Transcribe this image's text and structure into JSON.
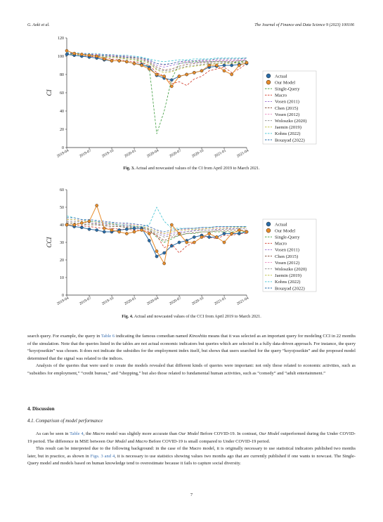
{
  "header": {
    "left": "G. Aoki et al.",
    "right": "The Journal of Finance and Data Science 9 (2023) 100106"
  },
  "legend_labels": [
    "Actual",
    "Our Model",
    "Single-Query",
    "Macro",
    "Vosen (2011)",
    "Chen (2015)",
    "Vosen (2012)",
    "Woloszko (2020)",
    "Jaemin (2019)",
    "Kohns (2022)",
    "Bouayad (2022)"
  ],
  "series_colors": {
    "Actual": "#2a6ca8",
    "Our Model": "#e88c2a",
    "Single-Query": "#3a9a3a",
    "Macro": "#d03a2a",
    "Vosen (2011)": "#9a6fd0",
    "Chen (2015)": "#8c5a4a",
    "Vosen (2012)": "#e88ac0",
    "Woloszko (2020)": "#888888",
    "Jaemin (2019)": "#b8bc3a",
    "Kohns (2022)": "#3ac0d0",
    "Bouayad (2022)": "#2a6ca8"
  },
  "chart_data": [
    {
      "type": "line",
      "ylabel": "CI",
      "xlabel": "",
      "ylim": [
        0,
        120
      ],
      "yticks": [
        "0",
        "20",
        "40",
        "60",
        "80",
        "100",
        "120"
      ],
      "x_tick_labels": [
        "2019-04",
        "2019-07",
        "2019-10",
        "2020-01",
        "2020-04",
        "2020-07",
        "2020-10",
        "2021-01",
        "2021-04"
      ],
      "x_tick_index": [
        0,
        3,
        6,
        9,
        12,
        15,
        18,
        21,
        24
      ],
      "x_range": [
        0,
        24
      ],
      "legend_position": "right",
      "series": [
        {
          "name": "Actual",
          "values": [
            102,
            101,
            100,
            99,
            98,
            96,
            95,
            95,
            94,
            92,
            91,
            88,
            79,
            76,
            74,
            78,
            80,
            82,
            84,
            88,
            89,
            90,
            90,
            91,
            92
          ]
        },
        {
          "name": "Our Model",
          "values": [
            106,
            103,
            102,
            101,
            100,
            97,
            95,
            95,
            94,
            92,
            90,
            86,
            80,
            78,
            67,
            78,
            80,
            82,
            84,
            90,
            90,
            84,
            80,
            90,
            93
          ]
        },
        {
          "name": "Single-Query",
          "values": [
            103,
            102,
            102,
            101,
            100,
            99,
            99,
            98,
            97,
            96,
            94,
            88,
            15,
            40,
            75,
            92,
            93,
            94,
            94,
            94,
            94,
            94,
            93,
            94,
            95
          ]
        },
        {
          "name": "Macro",
          "values": [
            103,
            102,
            101,
            100,
            99,
            98,
            97,
            96,
            95,
            94,
            93,
            90,
            82,
            78,
            70,
            72,
            68,
            75,
            78,
            84,
            86,
            88,
            82,
            86,
            92
          ]
        },
        {
          "name": "Vosen (2011)",
          "values": [
            104,
            103,
            103,
            102,
            102,
            101,
            101,
            100,
            100,
            99,
            98,
            95,
            90,
            88,
            90,
            92,
            93,
            93,
            94,
            94,
            95,
            95,
            95,
            95,
            96
          ]
        },
        {
          "name": "Chen (2015)",
          "values": [
            103,
            103,
            102,
            102,
            101,
            101,
            100,
            99,
            99,
            98,
            97,
            94,
            88,
            85,
            86,
            89,
            91,
            92,
            93,
            93,
            94,
            94,
            94,
            95,
            95
          ]
        },
        {
          "name": "Vosen (2012)",
          "values": [
            104,
            104,
            103,
            103,
            102,
            102,
            101,
            101,
            100,
            99,
            98,
            96,
            92,
            90,
            92,
            94,
            94,
            95,
            95,
            95,
            96,
            96,
            96,
            96,
            97
          ]
        },
        {
          "name": "Woloszko (2020)",
          "values": [
            103,
            102,
            102,
            101,
            100,
            100,
            99,
            98,
            98,
            97,
            96,
            93,
            86,
            84,
            84,
            87,
            89,
            90,
            91,
            92,
            92,
            93,
            93,
            93,
            94
          ]
        },
        {
          "name": "Jaemin (2019)",
          "values": [
            102,
            102,
            101,
            101,
            100,
            99,
            99,
            98,
            97,
            96,
            95,
            92,
            85,
            82,
            83,
            86,
            88,
            89,
            90,
            91,
            92,
            92,
            92,
            93,
            93
          ]
        },
        {
          "name": "Kohns (2022)",
          "values": [
            104,
            104,
            103,
            103,
            103,
            102,
            102,
            101,
            101,
            100,
            99,
            97,
            95,
            94,
            95,
            96,
            96,
            97,
            97,
            97,
            98,
            98,
            98,
            98,
            98
          ]
        },
        {
          "name": "Bouayad (2022)",
          "values": [
            103,
            103,
            102,
            102,
            101,
            101,
            100,
            100,
            99,
            99,
            98,
            96,
            92,
            91,
            92,
            94,
            95,
            95,
            96,
            96,
            97,
            97,
            97,
            97,
            98
          ]
        }
      ]
    },
    {
      "type": "line",
      "ylabel": "CCI",
      "xlabel": "",
      "ylim": [
        0,
        60
      ],
      "yticks": [
        "0",
        "10",
        "20",
        "30",
        "40",
        "50",
        "60"
      ],
      "x_tick_labels": [
        "2019-04",
        "2019-07",
        "2019-10",
        "2020-01",
        "2020-04",
        "2020-07",
        "2020-10",
        "2021-01",
        "2021-04"
      ],
      "x_tick_index": [
        0,
        3,
        6,
        9,
        12,
        15,
        18,
        21,
        24
      ],
      "x_range": [
        0,
        24
      ],
      "legend_position": "right",
      "series": [
        {
          "name": "Actual",
          "values": [
            40,
            39,
            38.5,
            37.5,
            37,
            36,
            36,
            37,
            37.5,
            38,
            38,
            31,
            22,
            24,
            28,
            30,
            31,
            33,
            34,
            33,
            33,
            35,
            35,
            35,
            36
          ]
        },
        {
          "name": "Our Model",
          "values": [
            40,
            40,
            41,
            42,
            51,
            38,
            37,
            36,
            35,
            36,
            37,
            35,
            25,
            18,
            40,
            35,
            30,
            30,
            33,
            35,
            33,
            30,
            35,
            37,
            36
          ]
        },
        {
          "name": "Single-Query",
          "values": [
            41,
            41,
            40.5,
            40,
            40,
            39.5,
            39,
            39,
            38.5,
            38,
            38,
            37,
            33,
            30,
            32,
            34,
            35,
            35,
            36,
            36,
            36,
            36,
            36,
            36,
            36
          ]
        },
        {
          "name": "Macro",
          "values": [
            40,
            40,
            39.5,
            39,
            38.5,
            38,
            38,
            37.5,
            37.5,
            37,
            37,
            36,
            34,
            27,
            29,
            24,
            28,
            30,
            33,
            33,
            32,
            34,
            34,
            35,
            35
          ]
        },
        {
          "name": "Vosen (2011)",
          "values": [
            42,
            42,
            41.5,
            41,
            41,
            40.5,
            40,
            40,
            39.5,
            39,
            39,
            38,
            36,
            34,
            35,
            36,
            36,
            37,
            37,
            37,
            37.5,
            37.5,
            38,
            38,
            38
          ]
        },
        {
          "name": "Chen (2015)",
          "values": [
            41,
            41,
            40.5,
            40,
            40,
            39.5,
            39,
            39,
            38.5,
            38.5,
            38,
            37,
            34,
            31,
            33,
            34,
            35,
            35.5,
            36,
            36,
            36.5,
            36.5,
            37,
            37,
            37
          ]
        },
        {
          "name": "Vosen (2012)",
          "values": [
            43,
            43,
            42.5,
            42,
            42,
            41.5,
            41,
            41,
            40.5,
            40,
            40,
            39,
            37,
            35,
            36,
            37,
            37.5,
            38,
            38,
            38,
            38.5,
            38.5,
            39,
            39,
            39
          ]
        },
        {
          "name": "Woloszko (2020)",
          "values": [
            42,
            42,
            41.5,
            41,
            40.5,
            40,
            40,
            39.5,
            39,
            39,
            38.5,
            37.5,
            35,
            33,
            34,
            35,
            36,
            36.5,
            37,
            37,
            37,
            37.5,
            37.5,
            38,
            38
          ]
        },
        {
          "name": "Jaemin (2019)",
          "values": [
            43,
            43,
            42,
            42,
            41.5,
            41,
            40.5,
            40,
            40,
            39.5,
            39,
            38,
            36,
            35,
            36,
            37,
            37,
            37.5,
            37.5,
            38,
            38,
            38,
            38.5,
            38.5,
            38.5
          ]
        },
        {
          "name": "Kohns (2022)",
          "values": [
            45,
            44,
            43,
            42,
            42,
            41,
            41,
            40,
            40,
            39,
            39,
            40,
            50,
            42,
            38,
            38,
            38,
            38,
            38.5,
            38.5,
            39,
            39,
            39,
            39,
            39
          ]
        },
        {
          "name": "Bouayad (2022)",
          "values": [
            44,
            44,
            43,
            43,
            42.5,
            42,
            41.5,
            41,
            41,
            40.5,
            40,
            39,
            37,
            36,
            37,
            37.5,
            38,
            38,
            38.5,
            38.5,
            39,
            39,
            39,
            39,
            39
          ]
        }
      ]
    }
  ],
  "figures": [
    {
      "label": "Fig. 3.",
      "caption": "Actual and nowcasted values of the CI from April 2019 to March 2021."
    },
    {
      "label": "Fig. 4.",
      "caption": "Actual and nowcasted values of the CCI from April 2019 to March 2021."
    }
  ],
  "para1": {
    "t1": "search query. For example, the query in ",
    "link1": "Table 6",
    "t2": " indicating the famous comedian named ",
    "em1": "Kinoshita",
    "t3": " means that it was selected as an important query for modeling CCI in 22 months of the simulation. Note that the queries listed in the tables are not actual economic indicators but queries which are selected in a fully data-driven approach. For instance, the query “koyojoseikin” was chosen. It does not indicate the subsidies for the employment index itself, but shows that users searched for the query “koyojoseikin” and the proposed model determined that the signal was related to the indices."
  },
  "para2": "Analysis of the queries that were used to create the models revealed that different kinds of queries were important: not only those related to economic activities, such as “subsidies for employment,” “credit bureau,” and “shopping,” but also those related to fundamental human activities, such as “comedy” and “adult entertainment.”",
  "section_heading": "4.  Discussion",
  "subsection_heading": "4.1.  Comparison of model performance",
  "para3": {
    "t1": "As can be seen in ",
    "link1": "Table 4",
    "t2": ", the ",
    "em1": "Macro",
    "t3": " model was slightly more accurate than ",
    "em2": "Our Model",
    "t4": " Before COVID-19. In contrast, ",
    "em3": "Our Model",
    "t5": " outperformed during the Under COVID-19 period. The difference in MSE between ",
    "em4": "Our Model",
    "t6": " and ",
    "em5": "Macro",
    "t7": " Before COVID-19 is small compared to Under COVID-19 period."
  },
  "para4": {
    "t1": "This result can be interpreted due to the following background: in the case of the Macro model, it is originally necessary to use statistical indicators published two months later, but in practice, as shown in ",
    "link1": "Figs. 3 and 4",
    "t2": ", it is necessary to use statistics showing values two months ago that are currently published if one wants to nowcast. The Single-Query model and models based on human knowledge tend to overestimate because it fails to capture social diversity."
  },
  "page_number": "7"
}
